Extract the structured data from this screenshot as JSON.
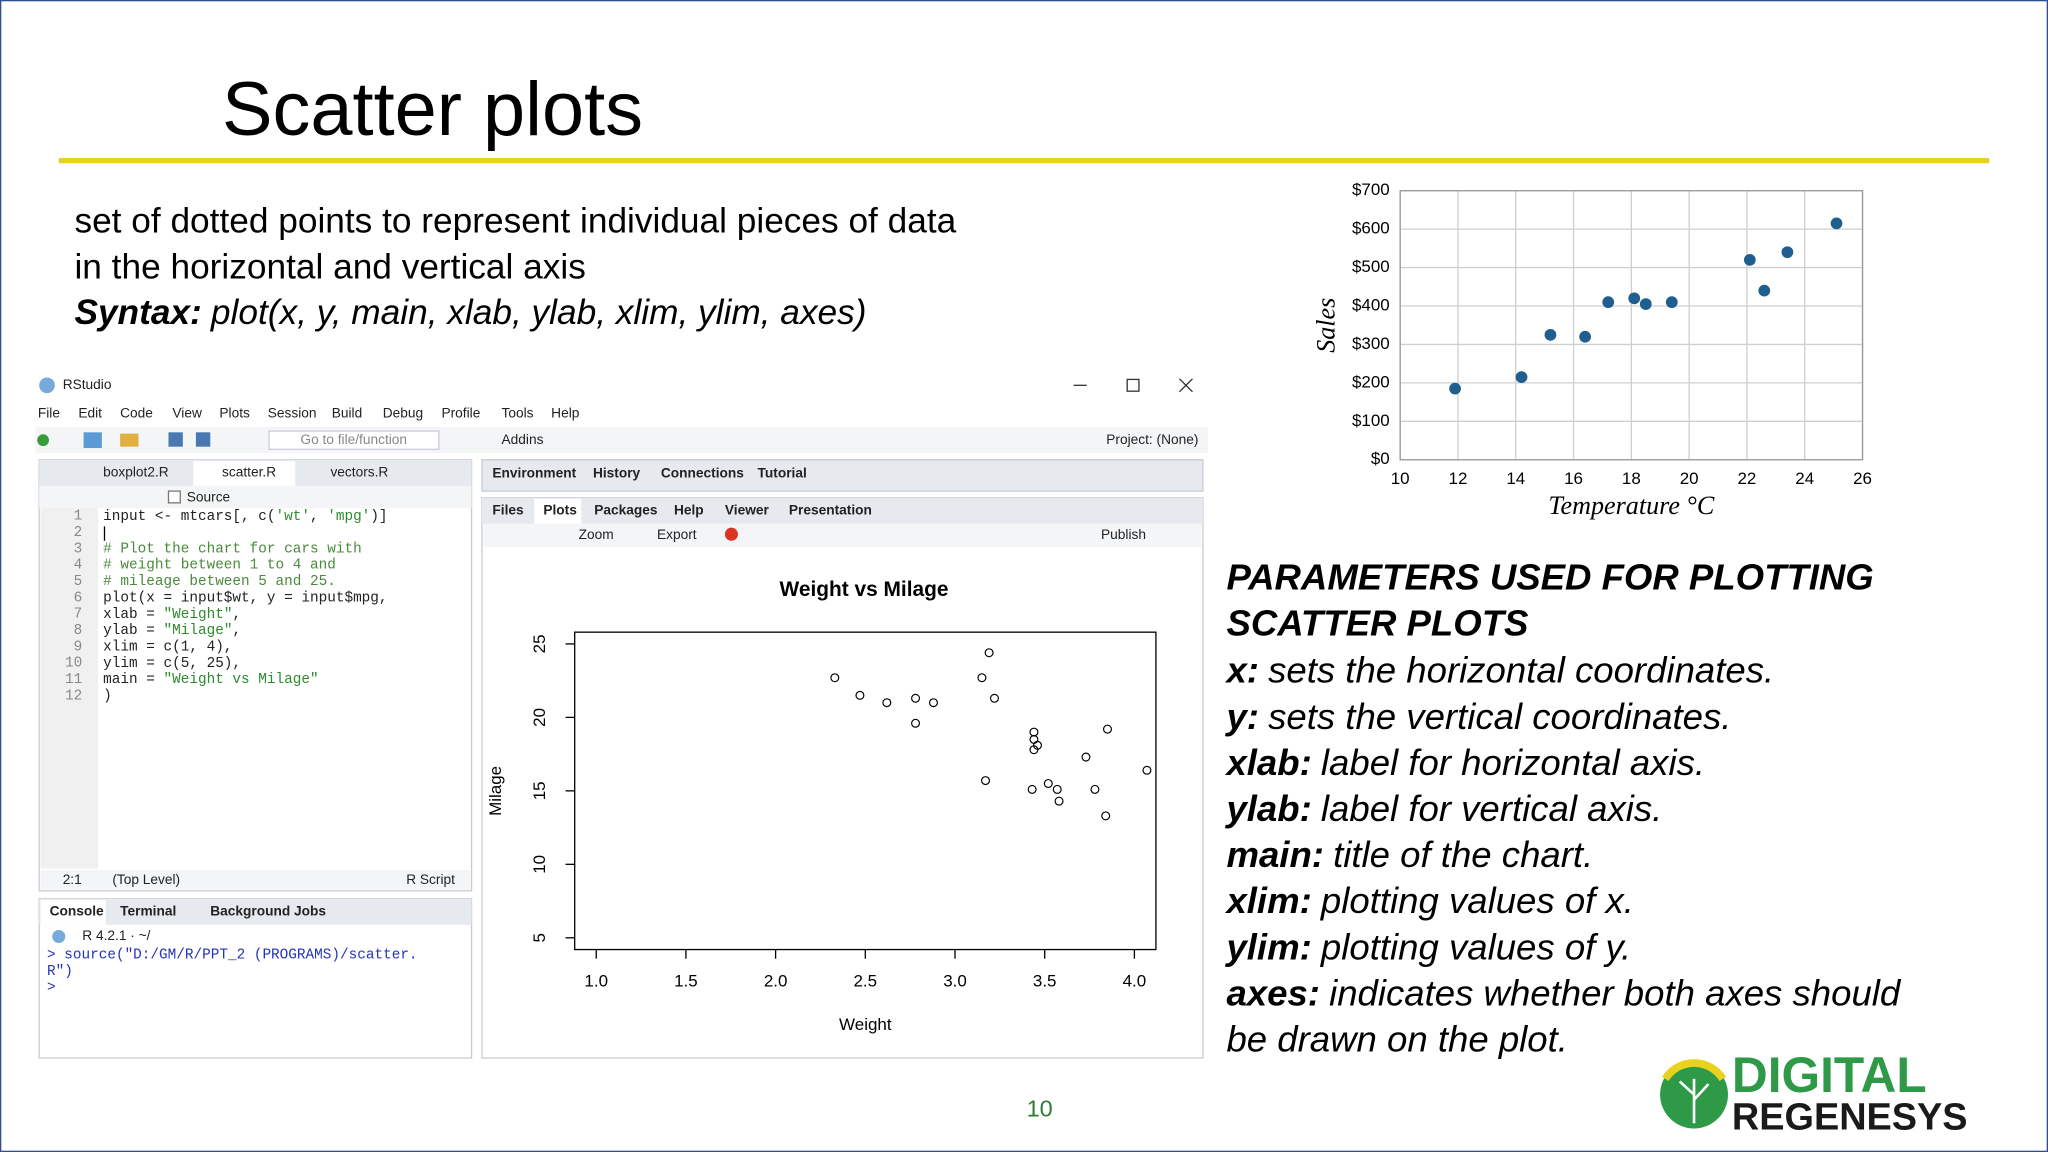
{
  "slide": {
    "title": "Scatter plots",
    "body": [
      "set of dotted points to represent individual pieces of data",
      "in the horizontal and vertical axis"
    ],
    "syntax_label": "Syntax:",
    "syntax": "plot(x, y, main, xlab, ylab, xlim, ylim, axes)",
    "parameters_heading": [
      "PARAMETERS USED FOR PLOTTING",
      "SCATTER PLOTS"
    ],
    "parameters": [
      {
        "name": "x:",
        "desc": "sets the horizontal coordinates."
      },
      {
        "name": "y:",
        "desc": "sets the vertical coordinates."
      },
      {
        "name": "xlab:",
        "desc": "label for horizontal axis."
      },
      {
        "name": "ylab:",
        "desc": "label for vertical axis."
      },
      {
        "name": "main:",
        "desc": "title of the chart."
      },
      {
        "name": "xlim:",
        "desc": "plotting values of x."
      },
      {
        "name": "ylim:",
        "desc": "plotting values of y."
      },
      {
        "name": "axes:",
        "desc": "indicates whether both axes should"
      },
      {
        "name": null,
        "desc": "be drawn on the plot."
      }
    ],
    "page_number": "10",
    "logo": [
      "DIGITAL",
      "REGENESYS"
    ]
  },
  "rstudio": {
    "window_title": "RStudio",
    "menu": [
      "File",
      "Edit",
      "Code",
      "View",
      "Plots",
      "Session",
      "Build",
      "Debug",
      "Profile",
      "Tools",
      "Help"
    ],
    "goto": "Go to file/function",
    "addins": "Addins",
    "project": "Project: (None)",
    "editor_tabs": [
      "boxplot2.R",
      "scatter.R",
      "vectors.R"
    ],
    "source": "Source",
    "code": [
      {
        "number": 1,
        "text": "input <- mtcars[, c('wt', 'mpg')]"
      },
      {
        "number": 2
      },
      {
        "number": 3,
        "text": "# Plot the chart for cars with"
      },
      {
        "number": 4,
        "text": "# weight between 1 to 4 and"
      },
      {
        "number": 5,
        "text": "# mileage between 5 and 25."
      },
      {
        "number": 6,
        "text": "plot(x = input$wt, y = input$mpg,"
      },
      {
        "number": 7,
        "text": "     xlab = \"Weight\","
      },
      {
        "number": 8,
        "text": "     ylab = \"Milage\","
      },
      {
        "number": 9,
        "text": "     xlim = c(1, 4),"
      },
      {
        "number": 10,
        "text": "     ylim = c(5, 25),"
      },
      {
        "number": 11,
        "text": "     main = \"Weight vs Milage\""
      },
      {
        "number": 12,
        "text": ")"
      }
    ],
    "status": [
      "2:1",
      "(Top Level)",
      "R Script"
    ],
    "console_tabs": [
      "Console",
      "Terminal",
      "Background Jobs"
    ],
    "r_version": "R 4.2.1 · ~/",
    "console": [
      "> source(\"D:/GM/R/PPT_2 (PROGRAMS)/scatter.",
      "R\")",
      ">"
    ],
    "env_tabs": [
      "Environment",
      "History",
      "Connections",
      "Tutorial"
    ],
    "files_tabs": [
      "Files",
      "Plots",
      "Packages",
      "Help",
      "Viewer",
      "Presentation"
    ],
    "plot_tools": [
      "Zoom",
      "Export",
      "Publish"
    ]
  },
  "chart_data": [
    {
      "type": "scatter",
      "x_label": "Temperature °C",
      "y_label": "Sales",
      "color": "#1f5f8f",
      "grid": true,
      "x": [
        11.9,
        14.2,
        15.2,
        16.4,
        17.2,
        18.1,
        18.5,
        19.4,
        22.1,
        22.6,
        23.4,
        25.1
      ],
      "values": [
        185,
        215,
        325,
        320,
        410,
        420,
        405,
        410,
        520,
        440,
        540,
        615
      ],
      "xlim": [
        10,
        26
      ],
      "xticks": [
        10,
        12,
        14,
        16,
        18,
        20,
        22,
        24,
        26
      ],
      "ylim": [
        0,
        700
      ],
      "yticks": [
        {
          "value": 0,
          "label": "$0"
        },
        {
          "value": 100,
          "label": "$100"
        },
        {
          "value": 200,
          "label": "$200"
        },
        {
          "value": 300,
          "label": "$300"
        },
        {
          "value": 400,
          "label": "$400"
        },
        {
          "value": 500,
          "label": "$500"
        },
        {
          "value": 600,
          "label": "$600"
        },
        {
          "value": 700,
          "label": "$700"
        }
      ]
    },
    {
      "type": "scatter",
      "title": "Weight vs Milage",
      "x_label": "Weight",
      "y_label": "Milage",
      "color": "#000000",
      "grid": false,
      "x": [
        2.33,
        2.47,
        2.62,
        2.78,
        2.78,
        2.88,
        3.15,
        3.19,
        3.22,
        3.17,
        3.44,
        3.44,
        3.46,
        3.44,
        3.43,
        3.52,
        3.57,
        3.58,
        3.73,
        3.78,
        3.85,
        3.84,
        4.07
      ],
      "values": [
        22.7,
        21.5,
        21.0,
        21.3,
        19.6,
        21.0,
        22.7,
        24.4,
        21.3,
        15.7,
        19.0,
        18.5,
        18.1,
        17.8,
        15.1,
        15.5,
        15.1,
        14.3,
        17.3,
        15.1,
        19.2,
        13.3,
        16.4
      ],
      "xlim": [
        0.88,
        4.12
      ],
      "xticks": [
        {
          "value": 1,
          "label": "1.0"
        },
        1.5,
        {
          "value": 2,
          "label": "2.0"
        },
        2.5,
        {
          "value": 3,
          "label": "3.0"
        },
        3.5,
        {
          "value": 4,
          "label": "4.0"
        }
      ],
      "ylim": [
        4.2,
        25.8
      ],
      "yticks": [
        5,
        10,
        15,
        20,
        25
      ]
    }
  ]
}
